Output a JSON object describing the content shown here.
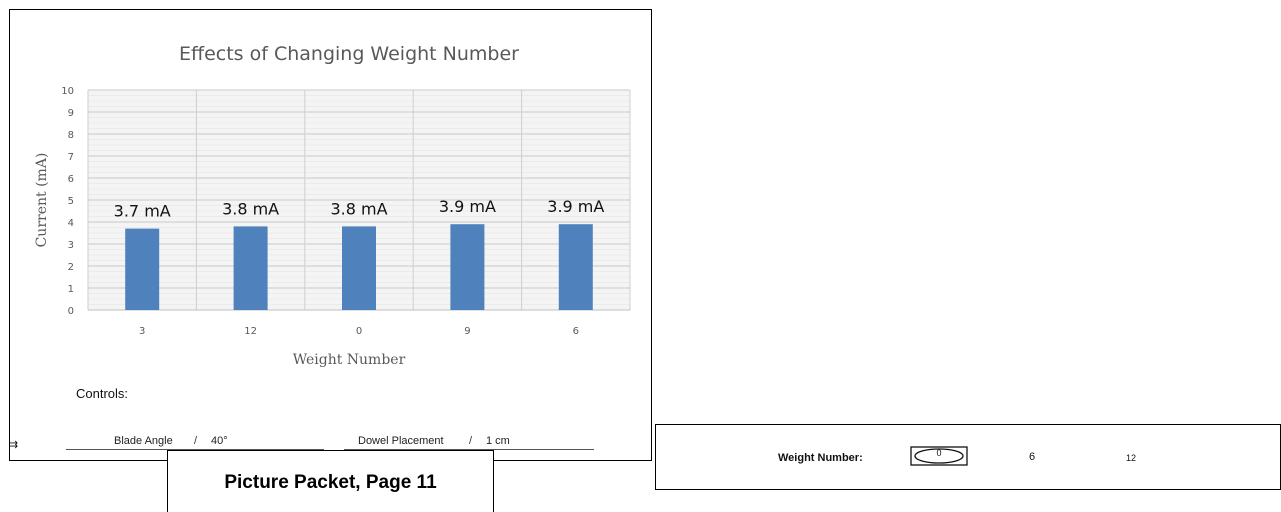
{
  "chart_data": {
    "type": "bar",
    "title": "Effects of Changing Weight Number",
    "xlabel": "Weight Number",
    "ylabel": "Current (mA)",
    "categories": [
      "3",
      "12",
      "0",
      "9",
      "6"
    ],
    "values": [
      3.7,
      3.8,
      3.8,
      3.9,
      3.9
    ],
    "data_labels": [
      "3.7 mA",
      "3.8 mA",
      "3.8 mA",
      "3.9 mA",
      "3.9 mA"
    ],
    "ylim": [
      0,
      10
    ],
    "yticks": [
      "0",
      "1",
      "2",
      "3",
      "4",
      "5",
      "6",
      "7",
      "8",
      "9",
      "10"
    ],
    "grid": true,
    "bar_color": "#4f81bd"
  },
  "controls": {
    "heading": "Controls:",
    "items": [
      {
        "name": "Blade Angle",
        "value": "40°"
      },
      {
        "name": "Dowel Placement",
        "value": "1 cm"
      }
    ],
    "separator": "/"
  },
  "corner_mark": "⇉",
  "caption": "Picture Packet, Page 11",
  "answer": {
    "label": "Weight Number:",
    "options": [
      "0",
      "6",
      "12"
    ],
    "selected": "0"
  }
}
